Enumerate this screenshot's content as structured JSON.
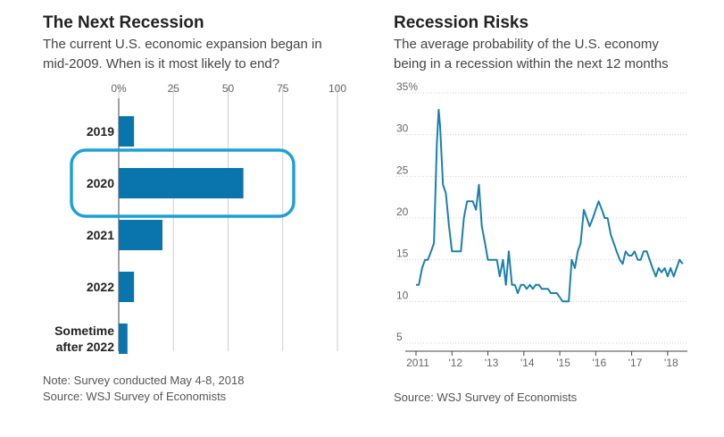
{
  "colors": {
    "bar": "#0a75ad",
    "line": "#1a80ad",
    "highlight": "#1ea0d6",
    "grid": "#cfcfcf"
  },
  "left": {
    "title": "The Next Recession",
    "subtitle_line1": "The current U.S. economic expansion began in",
    "subtitle_line2": "mid-2009. When is it most likely to end?",
    "note": "Note: Survey conducted May 4-8, 2018",
    "source": "Source: WSJ Survey of Economists"
  },
  "right": {
    "title": "Recession Risks",
    "subtitle_line1": "The average probability of the U.S. economy",
    "subtitle_line2": "being in a recession within the next 12 months",
    "source": "Source: WSJ Survey of Economists"
  },
  "chart_data": [
    {
      "type": "bar",
      "orientation": "horizontal",
      "title": "The Next Recession",
      "categories": [
        [
          "2019"
        ],
        [
          "2020"
        ],
        [
          "2021"
        ],
        [
          "2022"
        ],
        [
          "Sometime",
          "after 2022"
        ]
      ],
      "values": [
        7,
        57,
        20,
        7,
        4
      ],
      "xlim": [
        0,
        100
      ],
      "xticks": [
        0,
        25,
        50,
        75,
        100
      ],
      "xtick_labels": [
        "0%",
        "25",
        "50",
        "75",
        "100"
      ],
      "highlight_category_index": 1,
      "grid": true
    },
    {
      "type": "line",
      "title": "Recession Risks",
      "ylim": [
        5,
        35
      ],
      "yticks": [
        5,
        10,
        15,
        20,
        25,
        30,
        35
      ],
      "ytick_labels": [
        "5",
        "10",
        "15",
        "20",
        "25",
        "30",
        "35%"
      ],
      "xlim": [
        2011,
        2018.5
      ],
      "xticks": [
        2011,
        2012,
        2013,
        2014,
        2015,
        2016,
        2017,
        2018
      ],
      "xtick_labels": [
        "2011",
        "'12",
        "'13",
        "'14",
        "'15",
        "'16",
        "'17",
        "'18"
      ],
      "grid": true,
      "x": [
        2011.0,
        2011.08,
        2011.17,
        2011.25,
        2011.33,
        2011.42,
        2011.5,
        2011.58,
        2011.63,
        2011.67,
        2011.75,
        2011.83,
        2011.92,
        2012.0,
        2012.08,
        2012.17,
        2012.25,
        2012.33,
        2012.42,
        2012.5,
        2012.58,
        2012.67,
        2012.75,
        2012.83,
        2012.92,
        2013.0,
        2013.08,
        2013.17,
        2013.25,
        2013.33,
        2013.42,
        2013.5,
        2013.58,
        2013.67,
        2013.75,
        2013.83,
        2013.92,
        2014.0,
        2014.08,
        2014.17,
        2014.25,
        2014.33,
        2014.42,
        2014.5,
        2014.58,
        2014.67,
        2014.75,
        2014.83,
        2014.92,
        2015.0,
        2015.08,
        2015.17,
        2015.25,
        2015.33,
        2015.42,
        2015.5,
        2015.58,
        2015.67,
        2015.75,
        2015.83,
        2015.92,
        2016.0,
        2016.08,
        2016.17,
        2016.25,
        2016.33,
        2016.42,
        2016.5,
        2016.58,
        2016.67,
        2016.75,
        2016.83,
        2016.92,
        2017.0,
        2017.08,
        2017.17,
        2017.25,
        2017.33,
        2017.42,
        2017.5,
        2017.58,
        2017.67,
        2017.75,
        2017.83,
        2017.92,
        2018.0,
        2018.08,
        2018.17,
        2018.25,
        2018.33,
        2018.42
      ],
      "y": [
        12,
        12,
        14,
        15,
        15,
        16,
        17,
        29,
        33,
        31,
        24,
        23,
        19,
        16,
        16,
        16,
        16,
        20,
        22,
        22,
        22,
        21,
        24,
        19,
        17,
        15,
        15,
        15,
        15,
        13,
        15,
        12,
        16,
        12,
        12,
        11,
        12,
        12,
        11.5,
        12,
        11.5,
        12,
        12,
        11.5,
        11.5,
        11.5,
        11,
        11,
        11,
        10.5,
        10,
        10,
        10,
        15,
        14,
        16,
        17,
        21,
        20,
        19,
        20,
        21,
        22,
        21,
        20,
        20,
        18,
        17,
        16,
        15,
        14.5,
        16,
        15.5,
        15.5,
        16,
        15,
        15,
        16,
        16,
        15,
        14,
        13,
        14,
        13.5,
        14,
        13,
        14,
        13,
        14,
        15,
        14.5
      ]
    }
  ]
}
